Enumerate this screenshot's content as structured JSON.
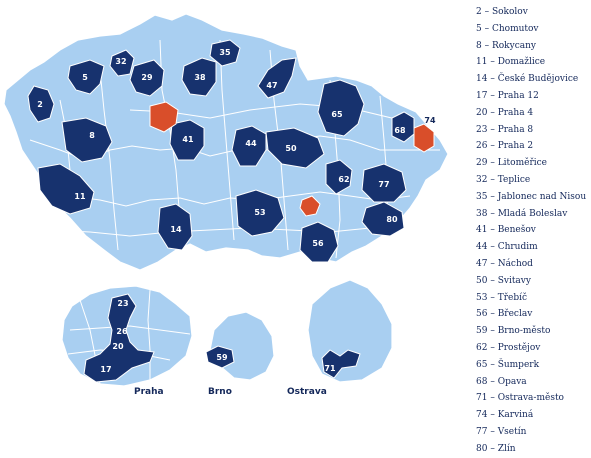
{
  "colors": {
    "background": "#ffffff",
    "region": "#a9cff1",
    "border": "#ffffff",
    "highlight_dark": "#17326e",
    "highlight_red": "#d94e2a",
    "label_light": "#ffffff",
    "text": "#14285a"
  },
  "districts": [
    {
      "num": "2",
      "name": "Sokolov"
    },
    {
      "num": "5",
      "name": "Chomutov"
    },
    {
      "num": "8",
      "name": "Rokycany"
    },
    {
      "num": "11",
      "name": "Domažlice"
    },
    {
      "num": "14",
      "name": "České Budějovice"
    },
    {
      "num": "17",
      "name": "Praha 12"
    },
    {
      "num": "20",
      "name": "Praha 4"
    },
    {
      "num": "23",
      "name": "Praha 8"
    },
    {
      "num": "26",
      "name": "Praha 2"
    },
    {
      "num": "29",
      "name": "Litoměřice"
    },
    {
      "num": "32",
      "name": "Teplice"
    },
    {
      "num": "35",
      "name": "Jablonec nad Nisou"
    },
    {
      "num": "38",
      "name": "Mladá Boleslav"
    },
    {
      "num": "41",
      "name": "Benešov"
    },
    {
      "num": "44",
      "name": "Chrudim"
    },
    {
      "num": "47",
      "name": "Náchod"
    },
    {
      "num": "50",
      "name": "Svitavy"
    },
    {
      "num": "53",
      "name": "Třebíč"
    },
    {
      "num": "56",
      "name": "Břeclav"
    },
    {
      "num": "59",
      "name": "Brno-město"
    },
    {
      "num": "62",
      "name": "Prostějov"
    },
    {
      "num": "65",
      "name": "Šumperk"
    },
    {
      "num": "68",
      "name": "Opava"
    },
    {
      "num": "71",
      "name": "Ostrava-město"
    },
    {
      "num": "74",
      "name": "Karviná"
    },
    {
      "num": "77",
      "name": "Vsetín"
    },
    {
      "num": "80",
      "name": "Zlín"
    }
  ],
  "inset_labels": {
    "praha": "Praha",
    "brno": "Brno",
    "ostrava": "Ostrava"
  }
}
